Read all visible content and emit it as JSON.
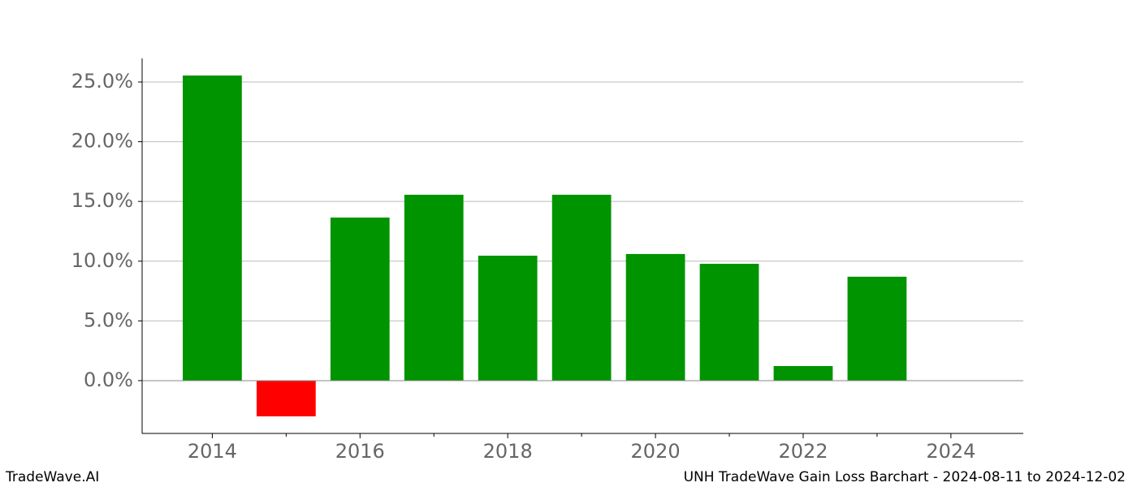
{
  "chart_data": {
    "type": "bar",
    "x": [
      2014,
      2015,
      2016,
      2017,
      2018,
      2019,
      2020,
      2021,
      2022,
      2023
    ],
    "values": [
      25.54,
      -2.99,
      13.65,
      15.56,
      10.46,
      15.56,
      10.6,
      9.78,
      1.22,
      8.7
    ],
    "color": "#009400",
    "negative_color": "#ff0000",
    "bar_width": 0.8,
    "xlim": [
      2013.05,
      2024.98
    ],
    "xticks": [
      2014,
      2016,
      2018,
      2020,
      2022,
      2024
    ],
    "xminorticks": [
      2015,
      2017,
      2019,
      2021,
      2023
    ],
    "ylim": [
      -4.42,
      26.97
    ],
    "yticks": [
      {
        "value": 0,
        "label": "0.0%"
      },
      {
        "value": 5,
        "label": "5.0%"
      },
      {
        "value": 10,
        "label": "10.0%"
      },
      {
        "value": 15,
        "label": "15.0%"
      },
      {
        "value": 20,
        "label": "20.0%"
      },
      {
        "value": 25,
        "label": "25.0%"
      }
    ],
    "grid": true,
    "footer_left": "TradeWave.AI",
    "footer_right": "UNH TradeWave Gain Loss Barchart - 2024-08-11 to 2024-12-02"
  }
}
